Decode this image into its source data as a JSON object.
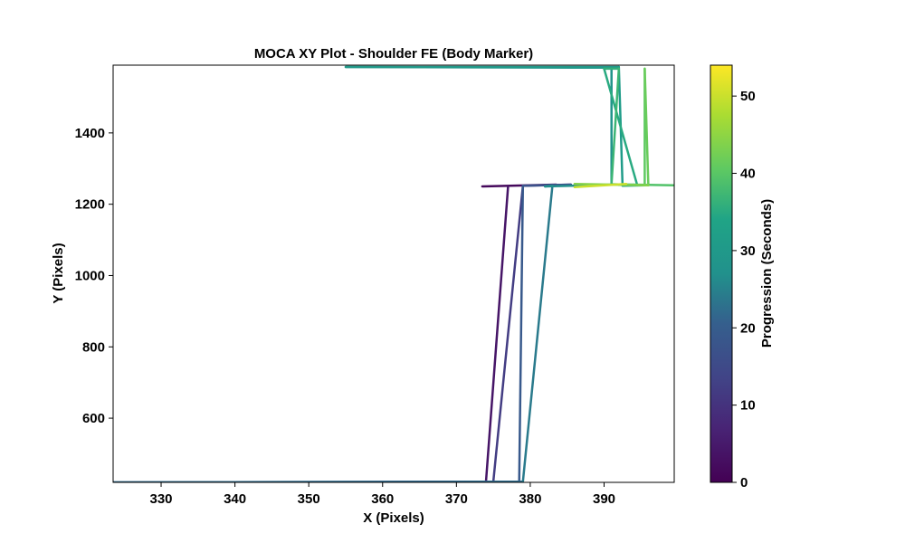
{
  "chart_data": {
    "type": "line",
    "title": "MOCA XY Plot - Shoulder FE (Body Marker)",
    "xlabel": "X (Pixels)",
    "ylabel": "Y (Pixels)",
    "xlim": [
      323.5,
      399.5
    ],
    "ylim": [
      420,
      1590
    ],
    "xticks": [
      330,
      340,
      350,
      360,
      370,
      380,
      390
    ],
    "yticks": [
      600,
      800,
      1000,
      1200,
      1400
    ],
    "grid": false,
    "colorbar": {
      "label": "Progression (Seconds)",
      "colormap": "viridis",
      "range": [
        0,
        54
      ],
      "ticks": [
        0,
        10,
        20,
        30,
        40,
        50
      ]
    },
    "series": [
      {
        "t": [
          0,
          3
        ],
        "x": [
          373.5,
          383.5
        ],
        "y": [
          1250,
          1255
        ]
      },
      {
        "t": [
          3,
          5
        ],
        "x": [
          377,
          374
        ],
        "y": [
          1250,
          422
        ]
      },
      {
        "t": [
          5,
          9
        ],
        "x": [
          374,
          323.5
        ],
        "y": [
          422,
          418
        ]
      },
      {
        "t": [
          9,
          11
        ],
        "x": [
          323.5,
          375
        ],
        "y": [
          418,
          422
        ]
      },
      {
        "t": [
          11,
          13
        ],
        "x": [
          375,
          379
        ],
        "y": [
          422,
          1252
        ]
      },
      {
        "t": [
          13,
          16
        ],
        "x": [
          379,
          385.5
        ],
        "y": [
          1252,
          1255
        ]
      },
      {
        "t": [
          16,
          18
        ],
        "x": [
          385.5,
          379
        ],
        "y": [
          1255,
          1252
        ]
      },
      {
        "t": [
          18,
          20
        ],
        "x": [
          379,
          378.5
        ],
        "y": [
          1252,
          422
        ]
      },
      {
        "t": [
          20,
          21.5
        ],
        "x": [
          378.5,
          323.5
        ],
        "y": [
          422,
          420
        ]
      },
      {
        "t": [
          21.5,
          23
        ],
        "x": [
          323.5,
          379
        ],
        "y": [
          420,
          422
        ]
      },
      {
        "t": [
          23,
          25
        ],
        "x": [
          379,
          383
        ],
        "y": [
          422,
          1252
        ]
      },
      {
        "t": [
          25,
          26
        ],
        "x": [
          383,
          382
        ],
        "y": [
          1252,
          1250
        ]
      },
      {
        "t": [
          26,
          27.5
        ],
        "x": [
          382,
          391
        ],
        "y": [
          1250,
          1255
        ]
      },
      {
        "t": [
          27.5,
          28.5
        ],
        "x": [
          391,
          391
        ],
        "y": [
          1255,
          1583
        ]
      },
      {
        "t": [
          28.5,
          29.5
        ],
        "x": [
          391,
          355
        ],
        "y": [
          1583,
          1585
        ]
      },
      {
        "t": [
          29.5,
          30.5
        ],
        "x": [
          355,
          392
        ],
        "y": [
          1585,
          1585
        ]
      },
      {
        "t": [
          30.5,
          31.5
        ],
        "x": [
          392,
          392.5
        ],
        "y": [
          1585,
          1252
        ]
      },
      {
        "t": [
          31.5,
          32.5
        ],
        "x": [
          392.5,
          395.5
        ],
        "y": [
          1252,
          1253
        ]
      },
      {
        "t": [
          32.5,
          33.5
        ],
        "x": [
          395.5,
          392
        ],
        "y": [
          1253,
          1255
        ]
      },
      {
        "t": [
          33.5,
          34.5
        ],
        "x": [
          392,
          394.5
        ],
        "y": [
          1255,
          1253
        ]
      },
      {
        "t": [
          34.5,
          35.5
        ],
        "x": [
          394.5,
          390
        ],
        "y": [
          1253,
          1580
        ]
      },
      {
        "t": [
          35.5,
          36.5
        ],
        "x": [
          390,
          392
        ],
        "y": [
          1580,
          1580
        ]
      },
      {
        "t": [
          36.5,
          37.5
        ],
        "x": [
          392,
          391
        ],
        "y": [
          1580,
          1256
        ]
      },
      {
        "t": [
          37.5,
          38.5
        ],
        "x": [
          391,
          394
        ],
        "y": [
          1256,
          1255
        ]
      },
      {
        "t": [
          38.5,
          40
        ],
        "x": [
          394,
          399.5
        ],
        "y": [
          1255,
          1253
        ]
      },
      {
        "t": [
          40,
          41
        ],
        "x": [
          395.5,
          395.5
        ],
        "y": [
          1253,
          1580
        ]
      },
      {
        "t": [
          41,
          42
        ],
        "x": [
          395.5,
          396
        ],
        "y": [
          1580,
          1253
        ]
      },
      {
        "t": [
          42,
          46
        ],
        "x": [
          396,
          386
        ],
        "y": [
          1253,
          1257
        ]
      },
      {
        "t": [
          46,
          54
        ],
        "x": [
          386,
          393
        ],
        "y": [
          1248,
          1257
        ]
      }
    ]
  }
}
